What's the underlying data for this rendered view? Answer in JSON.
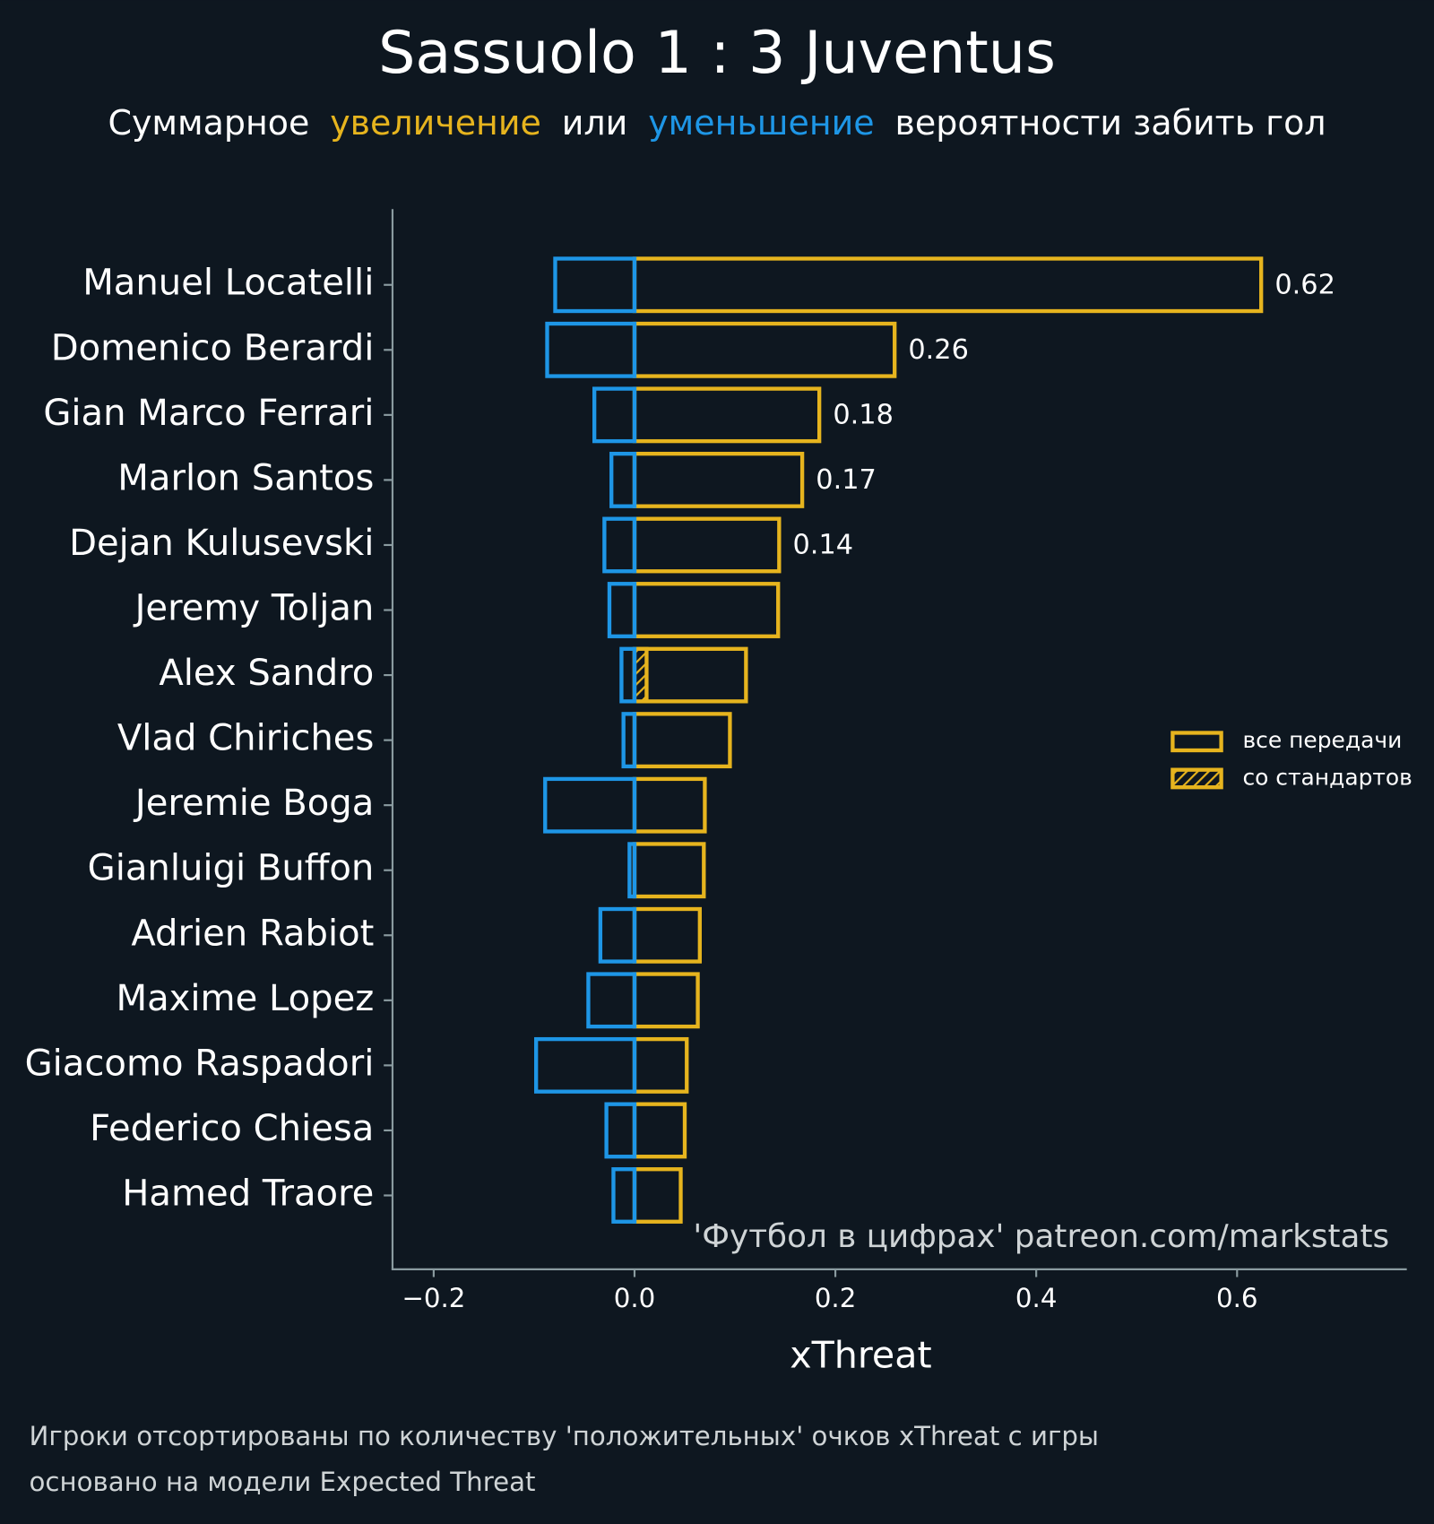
{
  "chart_data": {
    "type": "bar",
    "orientation": "horizontal",
    "title": "Sassuolo 1 : 3 Juventus",
    "subtitle_parts": [
      "Суммарное",
      "увеличение",
      "или",
      "уменьшение",
      "вероятности забить гол"
    ],
    "categories": [
      "Manuel Locatelli",
      "Domenico Berardi",
      "Gian Marco Ferrari",
      "Marlon Santos",
      "Dejan Kulusevski",
      "Jeremy Toljan",
      "Alex Sandro",
      "Vlad Chiriches",
      "Jeremie Boga",
      "Gianluigi Buffon",
      "Adrien Rabiot",
      "Maxime Lopez",
      "Giacomo Raspadori",
      "Federico Chiesa",
      "Hamed Traore"
    ],
    "series": [
      {
        "name": "все передачи",
        "color": "#e6b41e",
        "values": [
          0.624,
          0.259,
          0.184,
          0.167,
          0.144,
          0.143,
          0.111,
          0.095,
          0.07,
          0.069,
          0.065,
          0.063,
          0.052,
          0.05,
          0.046
        ],
        "value_labels": [
          "0.62",
          "0.26",
          "0.18",
          "0.17",
          "0.14",
          null,
          null,
          null,
          null,
          null,
          null,
          null,
          null,
          null,
          null
        ]
      },
      {
        "name": "со стандартов",
        "color": "#e6b41e",
        "hatch": true,
        "values": [
          0,
          0,
          0,
          0,
          0,
          0,
          0.012,
          0,
          0,
          0,
          0,
          0,
          0,
          0,
          0
        ]
      },
      {
        "color": "#1e96e6",
        "values": [
          -0.079,
          -0.087,
          -0.04,
          -0.023,
          -0.03,
          -0.025,
          -0.013,
          -0.011,
          -0.089,
          -0.005,
          -0.034,
          -0.046,
          -0.098,
          -0.028,
          -0.021
        ]
      }
    ],
    "xlabel": "xThreat",
    "xlim": [
      -0.241,
      0.769
    ],
    "xticks": [
      {
        "value": -0.2,
        "label": "−0.2"
      },
      {
        "value": 0,
        "label": "0.0"
      },
      {
        "value": 0.2,
        "label": "0.2"
      },
      {
        "value": 0.4,
        "label": "0.4"
      },
      {
        "value": 0.6,
        "label": "0.6"
      }
    ],
    "legend": "right",
    "annotation": "'Футбол в цифрах' patreon.com/markstats",
    "footnotes": [
      "Игроки отсортированы по количеству 'положительных' очков xThreat с игры",
      "основано на модели Expected Threat"
    ]
  }
}
